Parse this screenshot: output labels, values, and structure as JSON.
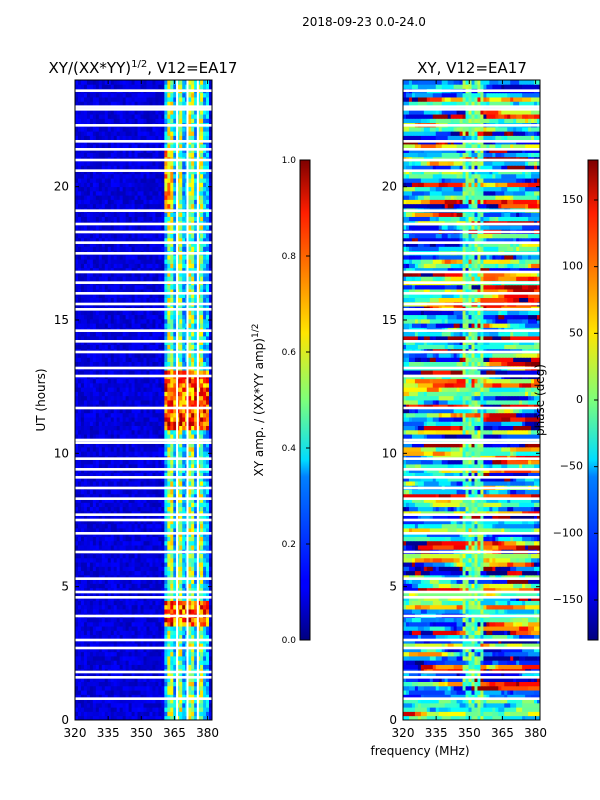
{
  "figure": {
    "suptitle": "2018-09-23 0.0-24.0",
    "xlabel_shared": "frequency (MHz)"
  },
  "chart_data": [
    {
      "type": "heatmap",
      "title": "XY/(XX*YY)^{1/2}, V12=EA17",
      "title_main": "XY/(XX*YY)",
      "title_sup": "1/2",
      "title_rest": ", V12=EA17",
      "xlabel": "",
      "ylabel": "UT (hours)",
      "xlim": [
        320,
        382
      ],
      "ylim": [
        0,
        24
      ],
      "xticks": [
        320,
        335,
        350,
        365,
        380
      ],
      "yticks": [
        0,
        5,
        10,
        15,
        20
      ],
      "colorbar": {
        "label": "XY amp. / (XX*YY amp)^{1/2}",
        "label_main": "XY amp. / (XX*YY amp)",
        "label_sup": "1/2",
        "range": [
          0.0,
          1.0
        ],
        "ticks": [
          "0.0",
          "0.2",
          "0.4",
          "0.6",
          "0.8",
          "1.0"
        ],
        "colormap": "jet"
      }
    },
    {
      "type": "heatmap",
      "title": "XY, V12=EA17",
      "xlabel": "frequency (MHz)",
      "ylabel": "",
      "xlim": [
        320,
        382
      ],
      "ylim": [
        0,
        24
      ],
      "xticks": [
        320,
        335,
        350,
        365,
        380
      ],
      "yticks": [
        0,
        5,
        10,
        15,
        20
      ],
      "colorbar": {
        "label": "phase (deg)",
        "range": [
          -180,
          180
        ],
        "ticks": [
          "150",
          "100",
          "50",
          "0",
          "−50",
          "−100",
          "−150"
        ],
        "tick_values": [
          150,
          100,
          50,
          0,
          -50,
          -100,
          -150
        ],
        "colormap": "jet"
      }
    }
  ],
  "flagged_rows_ut_hours": [
    0.8,
    1.6,
    1.8,
    2.7,
    3.0,
    3.9,
    4.6,
    4.8,
    5.3,
    6.3,
    7.0,
    7.5,
    7.7,
    8.3,
    8.7,
    9.1,
    9.4,
    9.8,
    10.4,
    10.5,
    11.7,
    12.9,
    13.2,
    13.8,
    14.2,
    14.6,
    15.4,
    15.6,
    16.0,
    16.4,
    16.8,
    17.5,
    17.9,
    18.3,
    18.6,
    19.1,
    20.6,
    21.0,
    21.4,
    21.7,
    22.3,
    22.9,
    23.0,
    23.6
  ],
  "colors": {
    "jet_low": "#00007f",
    "jet_high": "#7f0000",
    "axis": "#000000",
    "flag": "#ffffff"
  }
}
